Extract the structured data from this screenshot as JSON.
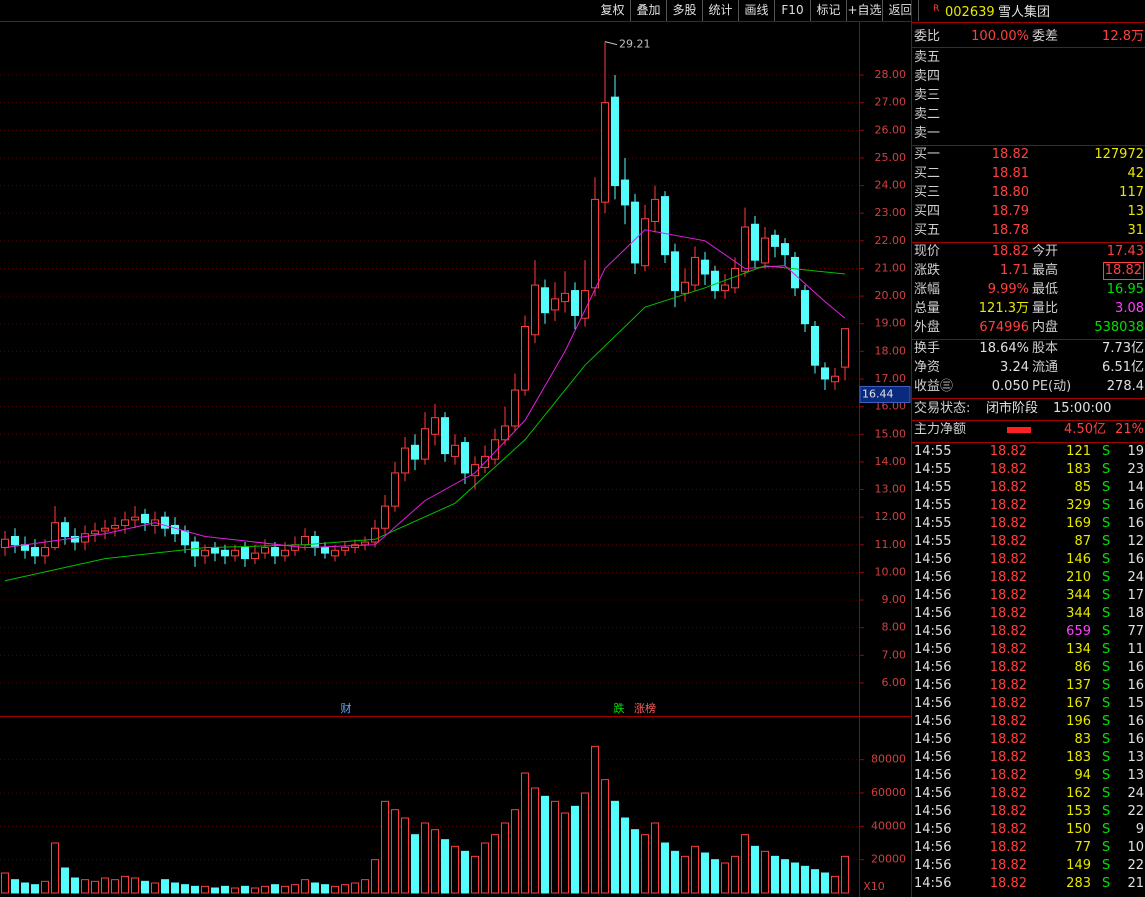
{
  "toolbar": {
    "buttons": [
      "复权",
      "叠加",
      "多股",
      "统计",
      "画线",
      "F10",
      "标记",
      "+自选",
      "返回"
    ]
  },
  "chart_data": {
    "type": "candlestick",
    "open": [
      10.9,
      11.3,
      11.0,
      10.9,
      10.6,
      10.9,
      11.8,
      11.3,
      11.1,
      11.4,
      11.5,
      11.6,
      11.7,
      11.9,
      12.1,
      11.7,
      12.0,
      11.7,
      11.5,
      11.1,
      10.6,
      10.9,
      10.8,
      10.6,
      10.9,
      10.5,
      10.7,
      10.9,
      10.6,
      10.8,
      11.0,
      11.3,
      10.9,
      10.6,
      10.8,
      10.9,
      11.0,
      11.1,
      11.6,
      12.4,
      13.6,
      14.6,
      14.1,
      15.0,
      15.6,
      14.2,
      14.7,
      13.5,
      13.8,
      14.1,
      14.8,
      15.3,
      16.6,
      18.6,
      20.3,
      19.5,
      19.8,
      20.2,
      19.2,
      20.3,
      23.4,
      27.2,
      24.2,
      23.4,
      21.1,
      22.7,
      23.6,
      21.6,
      20.1,
      20.4,
      21.3,
      20.9,
      20.2,
      20.3,
      20.9,
      22.6,
      21.2,
      22.2,
      21.9,
      21.4,
      20.2,
      18.9,
      17.4,
      16.9,
      17.43
    ],
    "high": [
      11.5,
      11.6,
      11.3,
      11.2,
      11.2,
      12.4,
      12.0,
      11.6,
      11.7,
      11.8,
      11.9,
      12.0,
      12.2,
      12.4,
      12.3,
      12.2,
      12.2,
      12.0,
      11.7,
      11.3,
      11.0,
      11.1,
      11.0,
      11.0,
      11.1,
      11.0,
      11.2,
      11.1,
      11.1,
      11.3,
      11.6,
      11.5,
      11.1,
      11.0,
      11.1,
      11.2,
      11.3,
      11.9,
      12.8,
      14.0,
      14.9,
      15.0,
      15.8,
      16.1,
      15.8,
      15.0,
      14.9,
      14.2,
      14.6,
      15.2,
      16.0,
      17.2,
      19.3,
      21.3,
      20.6,
      20.5,
      20.9,
      20.5,
      21.3,
      24.3,
      29.21,
      28.0,
      25.0,
      23.7,
      23.3,
      24.0,
      23.8,
      21.9,
      21.0,
      21.8,
      21.6,
      21.1,
      20.8,
      21.4,
      23.2,
      22.9,
      22.5,
      22.4,
      22.1,
      21.6,
      20.4,
      19.1,
      17.6,
      17.4,
      18.82
    ],
    "low": [
      10.6,
      10.7,
      10.5,
      10.3,
      10.3,
      10.8,
      11.0,
      10.8,
      10.8,
      11.1,
      11.2,
      11.3,
      11.4,
      11.6,
      11.5,
      11.4,
      11.3,
      11.1,
      10.7,
      10.2,
      10.3,
      10.4,
      10.3,
      10.4,
      10.2,
      10.3,
      10.5,
      10.3,
      10.4,
      10.6,
      10.8,
      10.6,
      10.5,
      10.4,
      10.6,
      10.7,
      10.8,
      10.9,
      11.4,
      12.2,
      13.3,
      13.7,
      13.9,
      14.6,
      14.0,
      13.9,
      13.2,
      13.0,
      13.6,
      13.9,
      14.6,
      15.1,
      16.4,
      18.3,
      19.0,
      19.1,
      19.4,
      18.8,
      18.9,
      20.0,
      23.0,
      23.5,
      22.6,
      20.8,
      20.9,
      22.3,
      21.2,
      19.6,
      19.8,
      20.2,
      20.4,
      19.9,
      19.9,
      20.1,
      20.7,
      21.0,
      21.0,
      21.4,
      21.1,
      20.0,
      18.7,
      17.2,
      16.6,
      16.6,
      16.95
    ],
    "close": [
      11.2,
      11.0,
      10.8,
      10.6,
      10.9,
      11.8,
      11.3,
      11.1,
      11.4,
      11.5,
      11.6,
      11.7,
      11.9,
      12.0,
      11.8,
      11.9,
      11.6,
      11.4,
      11.0,
      10.6,
      10.8,
      10.7,
      10.6,
      10.8,
      10.5,
      10.7,
      10.9,
      10.6,
      10.8,
      11.0,
      11.3,
      10.9,
      10.7,
      10.8,
      10.9,
      11.0,
      11.1,
      11.6,
      12.4,
      13.6,
      14.5,
      14.1,
      15.2,
      15.6,
      14.3,
      14.6,
      13.6,
      13.9,
      14.2,
      14.8,
      15.3,
      16.6,
      18.9,
      20.4,
      19.4,
      19.9,
      20.1,
      19.3,
      20.2,
      23.5,
      27.0,
      24.0,
      23.3,
      21.2,
      22.8,
      23.5,
      21.5,
      20.2,
      20.5,
      21.4,
      20.8,
      20.2,
      20.4,
      21.0,
      22.5,
      21.3,
      22.1,
      21.8,
      21.5,
      20.3,
      19.0,
      17.5,
      17.0,
      17.1,
      18.82
    ],
    "volume": [
      12000,
      8000,
      6000,
      5000,
      7000,
      30000,
      15000,
      9000,
      8000,
      7000,
      9000,
      8000,
      10000,
      9000,
      7000,
      6000,
      8000,
      6000,
      5000,
      4000,
      4000,
      3000,
      4000,
      3000,
      4000,
      3000,
      4000,
      5000,
      4000,
      5000,
      8000,
      6000,
      5000,
      4000,
      5000,
      6000,
      8000,
      20000,
      55000,
      50000,
      45000,
      35000,
      42000,
      38000,
      32000,
      28000,
      25000,
      22000,
      30000,
      35000,
      42000,
      50000,
      72000,
      63000,
      58000,
      55000,
      48000,
      52000,
      60000,
      88000,
      68000,
      55000,
      45000,
      38000,
      35000,
      42000,
      30000,
      25000,
      22000,
      28000,
      24000,
      20000,
      18000,
      22000,
      35000,
      28000,
      25000,
      22000,
      20000,
      18000,
      16000,
      14000,
      12000,
      10000,
      22000
    ],
    "up_color": "#ff3c3c",
    "down_color": "#54fcfc",
    "ma_lines": [
      {
        "color": "#00c000",
        "x": [
          0,
          10,
          20,
          30,
          37,
          45,
          52,
          58,
          64,
          70,
          76,
          84
        ],
        "values": [
          9.7,
          10.5,
          10.9,
          11.0,
          11.2,
          12.5,
          14.8,
          17.5,
          19.6,
          20.3,
          21.1,
          20.8
        ]
      },
      {
        "color": "#e020e0",
        "x": [
          0,
          10,
          15,
          20,
          30,
          37,
          42,
          47,
          52,
          56,
          60,
          64,
          70,
          74,
          78,
          82,
          84
        ],
        "values": [
          10.9,
          11.4,
          11.8,
          11.3,
          10.9,
          11.0,
          12.6,
          13.6,
          15.5,
          18.0,
          21.0,
          22.4,
          22.0,
          21.0,
          21.1,
          19.8,
          19.2
        ]
      }
    ],
    "ylim": [
      4.84,
      29.92
    ],
    "yticks": [
      {
        "value": 6,
        "label": "6.00"
      },
      {
        "value": 7,
        "label": "7.00"
      },
      {
        "value": 8,
        "label": "8.00"
      },
      {
        "value": 9,
        "label": "9.00"
      },
      {
        "value": 10,
        "label": "10.00"
      },
      {
        "value": 11,
        "label": "11.00"
      },
      {
        "value": 12,
        "label": "12.00"
      },
      {
        "value": 13,
        "label": "13.00"
      },
      {
        "value": 14,
        "label": "14.00"
      },
      {
        "value": 15,
        "label": "15.00"
      },
      {
        "value": 16,
        "label": "16.00"
      },
      {
        "value": 17,
        "label": "17.00"
      },
      {
        "value": 18,
        "label": "18.00"
      },
      {
        "value": 19,
        "label": "19.00"
      },
      {
        "value": 20,
        "label": "20.00"
      },
      {
        "value": 21,
        "label": "21.00"
      },
      {
        "value": 22,
        "label": "22.00"
      },
      {
        "value": 23,
        "label": "23.00"
      },
      {
        "value": 24,
        "label": "24.00"
      },
      {
        "value": 25,
        "label": "25.00"
      },
      {
        "value": 26,
        "label": "26.00"
      },
      {
        "value": 27,
        "label": "27.00"
      },
      {
        "value": 28,
        "label": "28.00"
      }
    ],
    "marker": 16.44,
    "vlim": [
      0,
      105000
    ],
    "vticks": [
      20000,
      40000,
      60000,
      80000
    ],
    "volume_unit": "X10",
    "events": [
      "财",
      "跌",
      "涨榜"
    ],
    "grid": true
  },
  "quote": {
    "flag": "R",
    "code": "002639",
    "name": "雪人集团",
    "weibi_label": "委比",
    "weibi": "100.00%",
    "weicha_label": "委差",
    "weicha": "12.8万",
    "asks": [
      "卖五",
      "卖四",
      "卖三",
      "卖二",
      "卖一"
    ],
    "bids": [
      [
        "买一",
        "18.82",
        "127972"
      ],
      [
        "买二",
        "18.81",
        "42"
      ],
      [
        "买三",
        "18.80",
        "117"
      ],
      [
        "买四",
        "18.79",
        "13"
      ],
      [
        "买五",
        "18.78",
        "31"
      ]
    ],
    "stats": [
      [
        "现价",
        "18.82",
        "今开",
        "17.43"
      ],
      [
        "涨跌",
        "1.71",
        "最高",
        "18.82"
      ],
      [
        "涨幅",
        "9.99%",
        "最低",
        "16.95"
      ],
      [
        "总量",
        "121.3万",
        "量比",
        "3.08"
      ],
      [
        "外盘",
        "674996",
        "内盘",
        "538038"
      ],
      [
        "换手",
        "18.64%",
        "股本",
        "7.73亿"
      ],
      [
        "净资",
        "3.24",
        "流通",
        "6.51亿"
      ],
      [
        "收益㊂",
        "0.050",
        "PE(动)",
        "278.4"
      ]
    ],
    "status": [
      "交易状态:",
      "闭市阶段",
      "15:00:00"
    ],
    "main_flow": [
      "主力净额",
      "4.50亿",
      "21%"
    ]
  },
  "ticks": [
    [
      "14:55",
      "18.82",
      "121",
      "S",
      "19"
    ],
    [
      "14:55",
      "18.82",
      "183",
      "S",
      "23"
    ],
    [
      "14:55",
      "18.82",
      "85",
      "S",
      "14"
    ],
    [
      "14:55",
      "18.82",
      "329",
      "S",
      "16"
    ],
    [
      "14:55",
      "18.82",
      "169",
      "S",
      "16"
    ],
    [
      "14:55",
      "18.82",
      "87",
      "S",
      "12"
    ],
    [
      "14:56",
      "18.82",
      "146",
      "S",
      "16"
    ],
    [
      "14:56",
      "18.82",
      "210",
      "S",
      "24"
    ],
    [
      "14:56",
      "18.82",
      "344",
      "S",
      "17"
    ],
    [
      "14:56",
      "18.82",
      "344",
      "S",
      "18"
    ],
    [
      "14:56",
      "18.82",
      "659",
      "S",
      "77"
    ],
    [
      "14:56",
      "18.82",
      "134",
      "S",
      "11"
    ],
    [
      "14:56",
      "18.82",
      "86",
      "S",
      "16"
    ],
    [
      "14:56",
      "18.82",
      "137",
      "S",
      "16"
    ],
    [
      "14:56",
      "18.82",
      "167",
      "S",
      "15"
    ],
    [
      "14:56",
      "18.82",
      "196",
      "S",
      "16"
    ],
    [
      "14:56",
      "18.82",
      "83",
      "S",
      "16"
    ],
    [
      "14:56",
      "18.82",
      "183",
      "S",
      "13"
    ],
    [
      "14:56",
      "18.82",
      "94",
      "S",
      "13"
    ],
    [
      "14:56",
      "18.82",
      "162",
      "S",
      "24"
    ],
    [
      "14:56",
      "18.82",
      "153",
      "S",
      "22"
    ],
    [
      "14:56",
      "18.82",
      "150",
      "S",
      "9"
    ],
    [
      "14:56",
      "18.82",
      "77",
      "S",
      "10"
    ],
    [
      "14:56",
      "18.82",
      "149",
      "S",
      "22"
    ],
    [
      "14:56",
      "18.82",
      "283",
      "S",
      "21"
    ]
  ]
}
